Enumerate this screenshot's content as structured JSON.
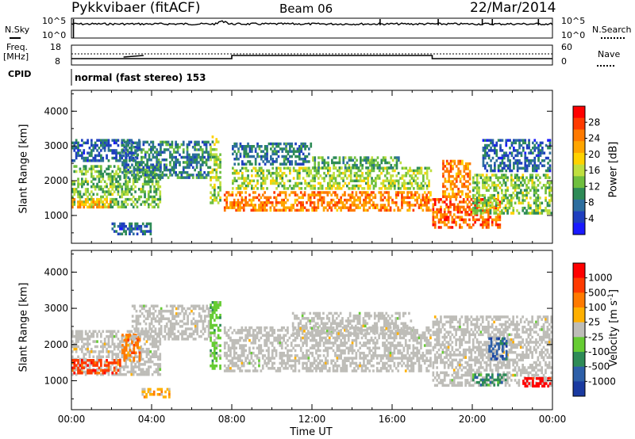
{
  "header": {
    "radar": "Pykkvibaer (fitACF)",
    "beam": "Beam 06",
    "date": "22/Mar/2014"
  },
  "panels": {
    "nsky_label": "N.Sky",
    "nsearch_label": "N.Search",
    "noise_ticks": [
      "10^5",
      "10^0"
    ],
    "freq_label": "Freq.",
    "freq_unit": "[MHz]",
    "nave_label": "Nave",
    "freq_ticks": [
      "18",
      "8"
    ],
    "nave_ticks": [
      "60",
      "0"
    ],
    "cpid_label": "CPID",
    "cpid_text": "normal (fast stereo) 153"
  },
  "colors": {
    "power": [
      "#1a1aff",
      "#1f3fbf",
      "#2d6e9e",
      "#2e8b57",
      "#6fbf3f",
      "#bfdf3f",
      "#ffd200",
      "#ffa500",
      "#ff7a00",
      "#ff3a00",
      "#ff0000"
    ],
    "velocity": [
      "#1a3aa0",
      "#2d5fa8",
      "#2e8b57",
      "#66cc33",
      "#bebdb8",
      "#ffb000",
      "#ff7a00",
      "#ff3a00",
      "#ff0000"
    ],
    "ground": "#bebdb8"
  },
  "chart_data": [
    {
      "type": "heatmap",
      "name": "power",
      "ylabel": "Slant Range [km]",
      "ylim": [
        200,
        4600
      ],
      "yticks": [
        "4000",
        "3000",
        "2000",
        "1000"
      ],
      "colorbar": {
        "label": "Power [dB]",
        "ticks": [
          "28",
          "24",
          "20",
          "16",
          "12",
          "8",
          "4"
        ],
        "range": [
          0,
          32
        ]
      },
      "xlim": [
        0,
        24
      ],
      "xlabel": "Time UT",
      "xticks": [
        "00:00",
        "04:00",
        "08:00",
        "12:00",
        "16:00",
        "20:00",
        "00:00"
      ],
      "regions": [
        {
          "t0": 0.0,
          "t1": 4.5,
          "r0": 1150,
          "r1": 2450,
          "level": 13
        },
        {
          "t0": 0.0,
          "t1": 2.0,
          "r0": 1200,
          "r1": 1500,
          "level": 22
        },
        {
          "t0": 2.5,
          "t1": 7.0,
          "r0": 2000,
          "r1": 3150,
          "level": 8
        },
        {
          "t0": 0.0,
          "t1": 3.5,
          "r0": 2500,
          "r1": 3200,
          "level": 6
        },
        {
          "t0": 7.6,
          "t1": 18.0,
          "r0": 1100,
          "r1": 1700,
          "level": 25
        },
        {
          "t0": 8.0,
          "t1": 18.0,
          "r0": 1700,
          "r1": 2400,
          "level": 15
        },
        {
          "t0": 8.0,
          "t1": 12.0,
          "r0": 2400,
          "r1": 3100,
          "level": 7
        },
        {
          "t0": 12.0,
          "t1": 16.5,
          "r0": 2300,
          "r1": 2700,
          "level": 11
        },
        {
          "t0": 18.0,
          "t1": 21.5,
          "r0": 600,
          "r1": 1500,
          "level": 27
        },
        {
          "t0": 18.5,
          "t1": 20.0,
          "r0": 1500,
          "r1": 2600,
          "level": 24
        },
        {
          "t0": 20.0,
          "t1": 24.0,
          "r0": 1000,
          "r1": 2200,
          "level": 14
        },
        {
          "t0": 20.5,
          "t1": 24.0,
          "r0": 2200,
          "r1": 3200,
          "level": 6
        },
        {
          "t0": 2.0,
          "t1": 4.0,
          "r0": 400,
          "r1": 800,
          "level": 6
        },
        {
          "t0": 6.9,
          "t1": 7.5,
          "r0": 1300,
          "r1": 3300,
          "level": 15
        }
      ]
    },
    {
      "type": "heatmap",
      "name": "velocity",
      "ylabel": "Slant Range [km]",
      "ylim": [
        200,
        4600
      ],
      "yticks": [
        "4000",
        "3000",
        "2000",
        "1000"
      ],
      "colorbar": {
        "label": "Velocity [m s",
        "label_sup": "-1",
        "label_close": "]",
        "ticks": [
          "1000",
          "500",
          "100",
          "25",
          "-25",
          "-100",
          "-500",
          "-1000"
        ]
      },
      "xlim": [
        0,
        24
      ],
      "xlabel": "Time UT",
      "xticks": [
        "00:00",
        "04:00",
        "08:00",
        "12:00",
        "16:00",
        "20:00",
        "00:00"
      ],
      "regions": [
        {
          "t0": 0.0,
          "t1": 4.5,
          "r0": 1100,
          "r1": 2400,
          "level": 4
        },
        {
          "t0": 0.0,
          "t1": 2.5,
          "r0": 1150,
          "r1": 1600,
          "level": 7
        },
        {
          "t0": 2.5,
          "t1": 3.5,
          "r0": 1500,
          "r1": 2300,
          "level": 6
        },
        {
          "t0": 3.0,
          "t1": 7.0,
          "r0": 2100,
          "r1": 3100,
          "level": 4
        },
        {
          "t0": 7.6,
          "t1": 18.0,
          "r0": 1200,
          "r1": 2500,
          "level": 4
        },
        {
          "t0": 11.0,
          "t1": 17.0,
          "r0": 2200,
          "r1": 2900,
          "level": 4
        },
        {
          "t0": 18.0,
          "t1": 24.0,
          "r0": 800,
          "r1": 2800,
          "level": 4
        },
        {
          "t0": 20.0,
          "t1": 21.8,
          "r0": 800,
          "r1": 1200,
          "level": 2
        },
        {
          "t0": 20.8,
          "t1": 21.8,
          "r0": 1500,
          "r1": 2200,
          "level": 1
        },
        {
          "t0": 22.5,
          "t1": 24.0,
          "r0": 800,
          "r1": 1100,
          "level": 8
        },
        {
          "t0": 3.5,
          "t1": 5.0,
          "r0": 500,
          "r1": 800,
          "level": 5
        },
        {
          "t0": 6.9,
          "t1": 7.5,
          "r0": 1300,
          "r1": 3200,
          "level": 3
        }
      ]
    }
  ]
}
